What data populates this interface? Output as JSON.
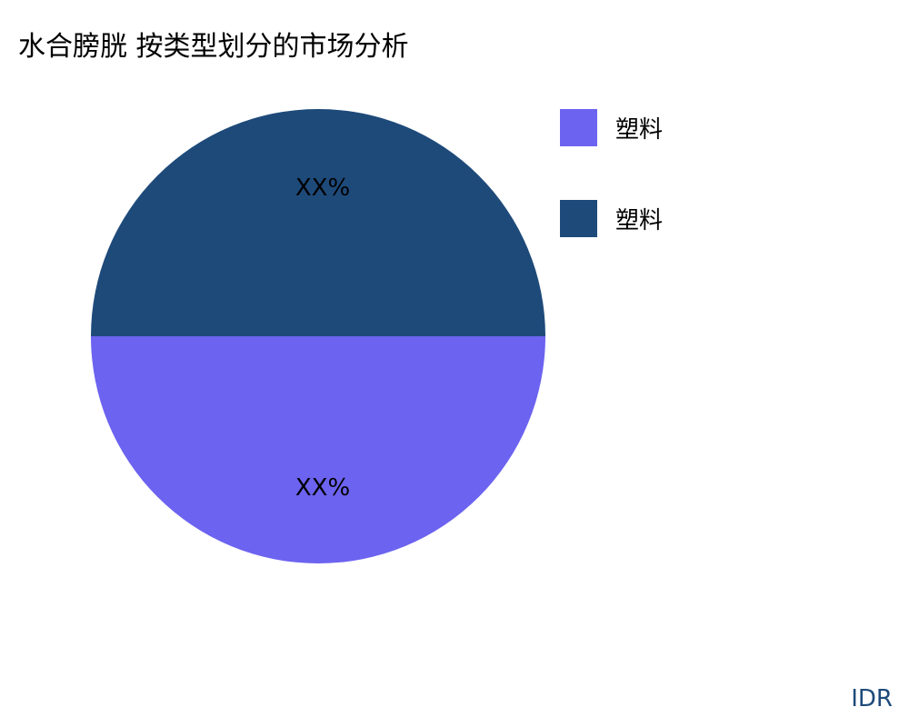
{
  "title": "水合膀胱 按类型划分的市场分析",
  "watermark": "IDR",
  "chart_data": {
    "type": "pie",
    "title": "水合膀胱 按类型划分的市场分析",
    "slices": [
      {
        "name": "塑料",
        "value": 50,
        "label": "XX%",
        "color": "#6c63f0"
      },
      {
        "name": "塑料",
        "value": 50,
        "label": "XX%",
        "color": "#1e4a7a"
      }
    ],
    "legend_position": "right"
  }
}
